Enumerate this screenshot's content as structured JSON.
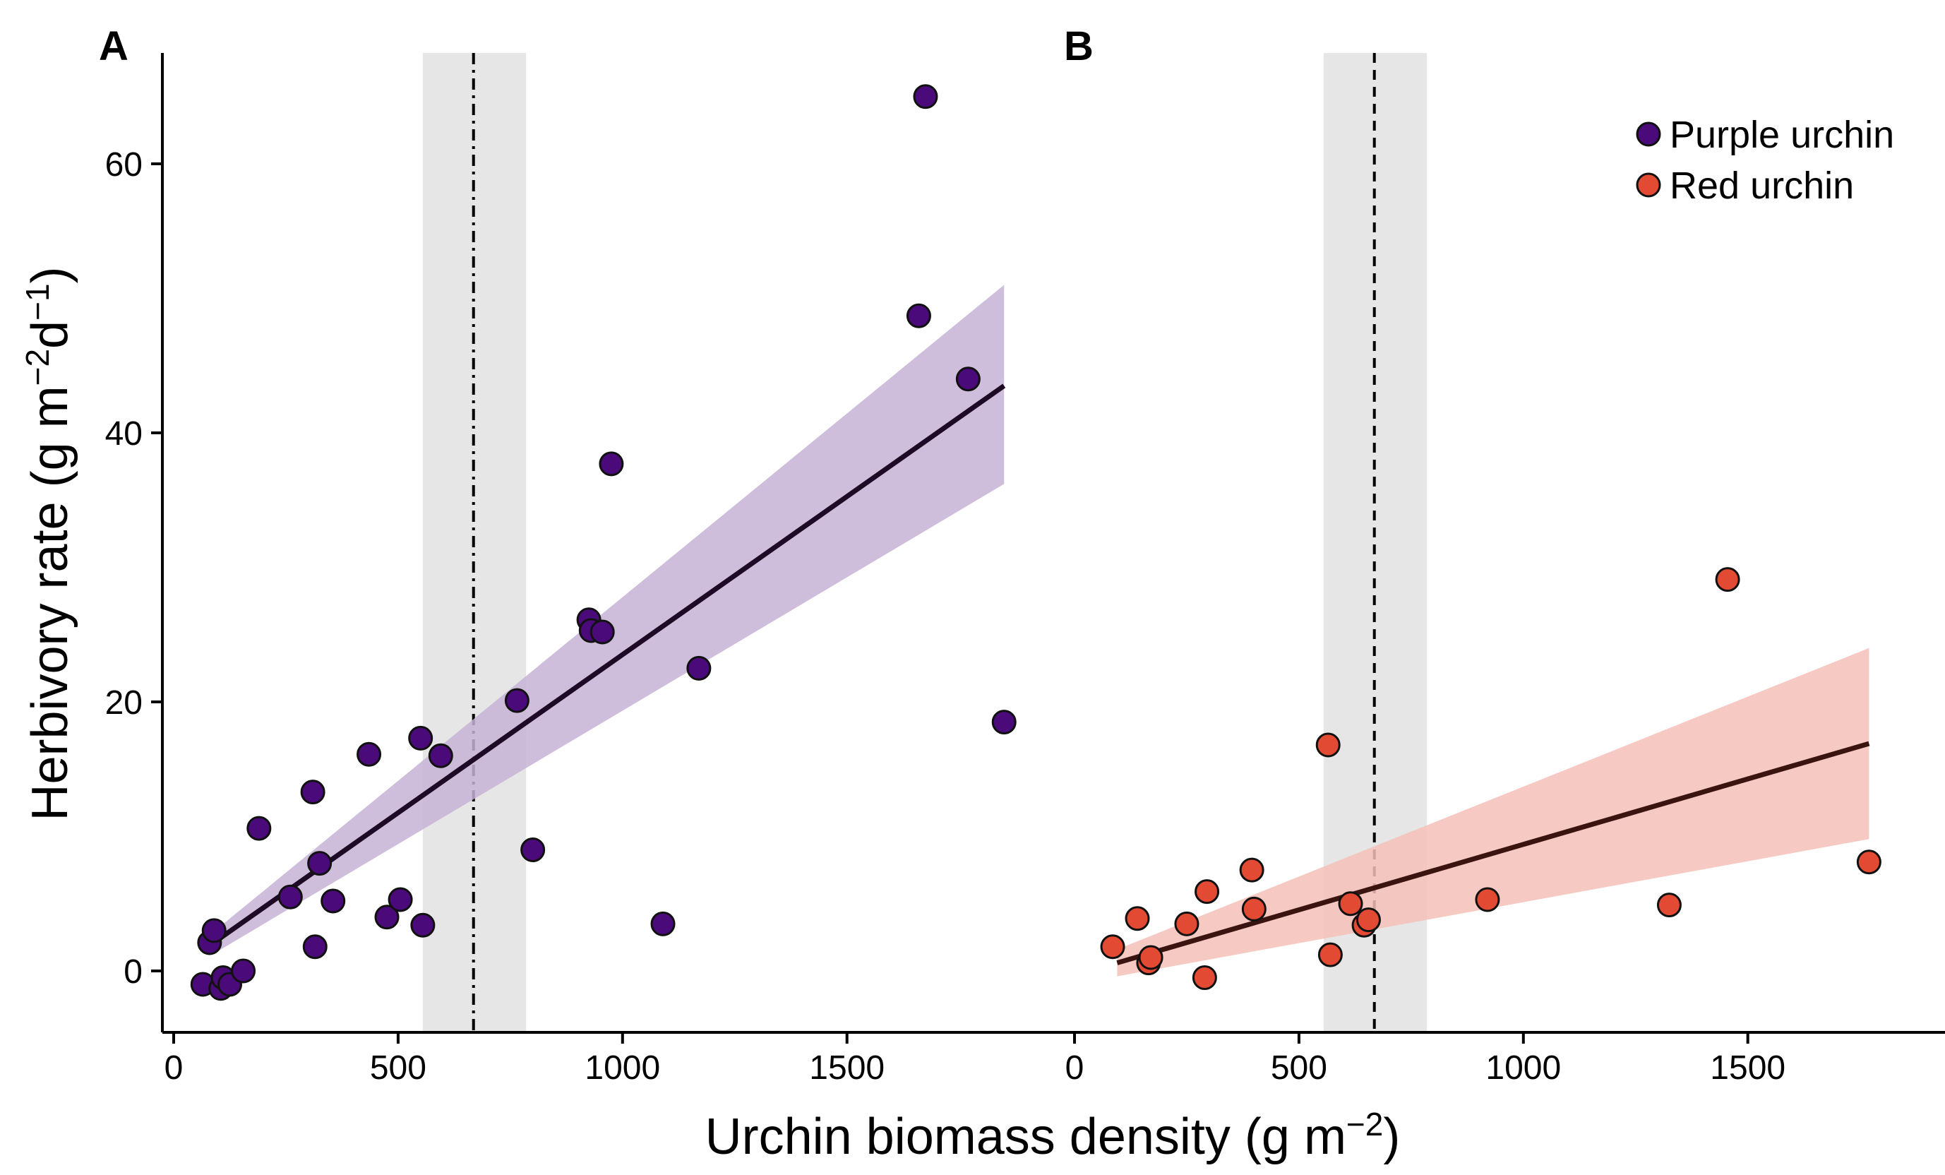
{
  "chart_data": [
    {
      "type": "scatter",
      "panel_label": "A",
      "xlabel": "Urchin biomass density (g m−2)",
      "ylabel": "Herbivory rate (g m−2d−1)",
      "xlim": [
        0,
        1900
      ],
      "ylim": [
        -4.5,
        68
      ],
      "xticks": [
        0,
        500,
        1000,
        1500
      ],
      "yticks": [
        0,
        20,
        40,
        60
      ],
      "series": [
        {
          "name": "Purple urchin",
          "color": "#4b0a7a",
          "points": [
            {
              "x": 65,
              "y": -1.0
            },
            {
              "x": 80,
              "y": 2.1
            },
            {
              "x": 90,
              "y": 3.0
            },
            {
              "x": 105,
              "y": -1.3
            },
            {
              "x": 110,
              "y": -0.5
            },
            {
              "x": 125,
              "y": -1.0
            },
            {
              "x": 155,
              "y": 0.0
            },
            {
              "x": 190,
              "y": 10.6
            },
            {
              "x": 260,
              "y": 5.5
            },
            {
              "x": 310,
              "y": 13.3
            },
            {
              "x": 315,
              "y": 1.8
            },
            {
              "x": 325,
              "y": 8.0
            },
            {
              "x": 355,
              "y": 5.2
            },
            {
              "x": 435,
              "y": 16.1
            },
            {
              "x": 475,
              "y": 4.0
            },
            {
              "x": 505,
              "y": 5.3
            },
            {
              "x": 550,
              "y": 17.3
            },
            {
              "x": 555,
              "y": 3.4
            },
            {
              "x": 595,
              "y": 16.0
            },
            {
              "x": 765,
              "y": 20.1
            },
            {
              "x": 800,
              "y": 9.0
            },
            {
              "x": 925,
              "y": 26.1
            },
            {
              "x": 930,
              "y": 25.3
            },
            {
              "x": 955,
              "y": 25.2
            },
            {
              "x": 975,
              "y": 37.7
            },
            {
              "x": 1090,
              "y": 3.5
            },
            {
              "x": 1170,
              "y": 22.5
            },
            {
              "x": 1660,
              "y": 48.7
            },
            {
              "x": 1675,
              "y": 65.0
            },
            {
              "x": 1770,
              "y": 44.0
            },
            {
              "x": 1850,
              "y": 18.5
            }
          ],
          "fit": {
            "x": [
              85,
              1850
            ],
            "y": [
              2.0,
              43.5
            ]
          },
          "ci": {
            "x": [
              85,
              1850
            ],
            "lower": [
              1.2,
              36.2
            ],
            "upper": [
              2.8,
              51.0
            ]
          },
          "fill": "#c7b2d6",
          "line_color": "#1e0a24"
        }
      ],
      "threshold": {
        "x": 668,
        "band": [
          555,
          785
        ],
        "style": "dash-dot"
      }
    },
    {
      "type": "scatter",
      "panel_label": "B",
      "xlim": [
        0,
        1900
      ],
      "ylim": [
        -4.5,
        68
      ],
      "xticks": [
        0,
        500,
        1000,
        1500
      ],
      "series": [
        {
          "name": "Red urchin",
          "color": "#e34a33",
          "points": [
            {
              "x": 85,
              "y": 1.8
            },
            {
              "x": 140,
              "y": 3.9
            },
            {
              "x": 165,
              "y": 0.6
            },
            {
              "x": 170,
              "y": 1.0
            },
            {
              "x": 250,
              "y": 3.5
            },
            {
              "x": 290,
              "y": -0.5
            },
            {
              "x": 295,
              "y": 5.9
            },
            {
              "x": 395,
              "y": 7.5
            },
            {
              "x": 400,
              "y": 4.6
            },
            {
              "x": 565,
              "y": 16.8
            },
            {
              "x": 570,
              "y": 1.2
            },
            {
              "x": 615,
              "y": 5.0
            },
            {
              "x": 645,
              "y": 3.4
            },
            {
              "x": 655,
              "y": 3.8
            },
            {
              "x": 920,
              "y": 5.3
            },
            {
              "x": 1325,
              "y": 4.9
            },
            {
              "x": 1455,
              "y": 29.1
            },
            {
              "x": 1770,
              "y": 8.1
            }
          ],
          "fit": {
            "x": [
              95,
              1770
            ],
            "y": [
              0.6,
              16.9
            ]
          },
          "ci": {
            "x": [
              95,
              1770
            ],
            "lower": [
              -0.4,
              9.8
            ],
            "upper": [
              1.6,
              24.0
            ]
          },
          "fill": "#f4c0b7",
          "line_color": "#3a1410"
        }
      ],
      "threshold": {
        "x": 668,
        "band": [
          555,
          785
        ],
        "style": "dashed"
      }
    }
  ],
  "legend": {
    "items": [
      {
        "label": "Purple urchin",
        "color": "#4b0a7a"
      },
      {
        "label": "Red urchin",
        "color": "#e34a33"
      }
    ],
    "placement": "top-right"
  },
  "colors": {
    "band": "#e6e6e6"
  }
}
